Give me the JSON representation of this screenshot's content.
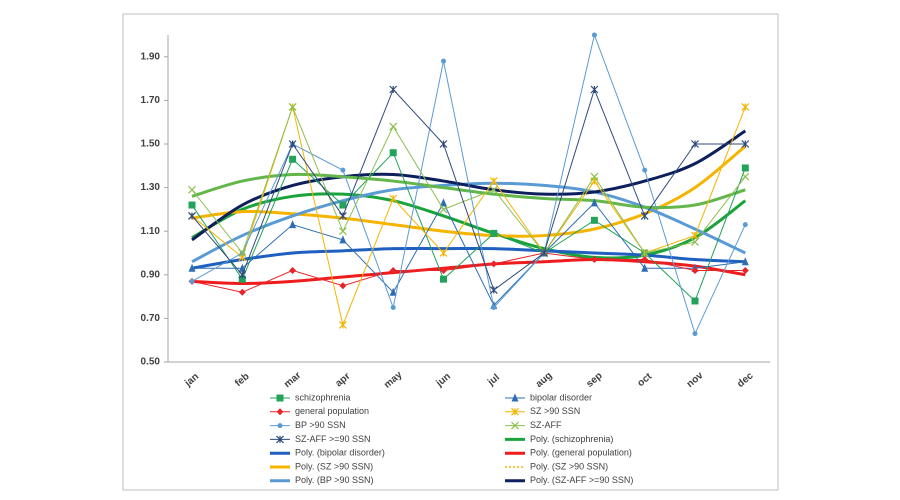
{
  "chart_data": {
    "type": "line",
    "categories": [
      "jan",
      "feb",
      "mar",
      "apr",
      "may",
      "jun",
      "jul",
      "aug",
      "sep",
      "oct",
      "nov",
      "dec"
    ],
    "ylim": [
      0.5,
      2.0
    ],
    "yticks": [
      {
        "value": 0.5,
        "label": "0.50"
      },
      {
        "value": 0.7,
        "label": "0.70"
      },
      {
        "value": 0.9,
        "label": "0.90"
      },
      {
        "value": 1.1,
        "label": "1.10"
      },
      {
        "value": 1.3,
        "label": "1.30"
      },
      {
        "value": 1.5,
        "label": "1.50"
      },
      {
        "value": 1.7,
        "label": "1.70"
      },
      {
        "value": 1.9,
        "label": "1.90"
      }
    ],
    "grid": false,
    "series": [
      {
        "name": "schizophrenia",
        "color": "#21a35a",
        "marker": "square",
        "values": [
          1.22,
          0.88,
          1.43,
          1.22,
          1.46,
          0.88,
          1.09,
          1.0,
          1.15,
          1.0,
          0.78,
          1.39
        ]
      },
      {
        "name": "bipolar disorder",
        "color": "#2e6db4",
        "marker": "triangle",
        "values": [
          0.93,
          0.93,
          1.13,
          1.06,
          0.82,
          1.23,
          0.76,
          1.0,
          1.23,
          0.93,
          0.93,
          0.96
        ]
      },
      {
        "name": "general population",
        "color": "#e8252a",
        "marker": "diamond",
        "values": [
          0.87,
          0.82,
          0.92,
          0.85,
          0.92,
          0.92,
          0.95,
          1.0,
          0.97,
          0.97,
          0.92,
          0.92
        ]
      },
      {
        "name": "SZ >90 SSN",
        "color": "#f5b400",
        "marker": "star",
        "values": [
          1.17,
          0.98,
          1.67,
          0.67,
          1.25,
          1.0,
          1.33,
          1.0,
          1.33,
          1.0,
          1.08,
          1.67
        ]
      },
      {
        "name": "BP >90 SSN",
        "color": "#5b9bd5",
        "marker": "circle",
        "values": [
          0.87,
          1.0,
          1.5,
          1.38,
          0.75,
          1.88,
          0.75,
          1.0,
          2.0,
          1.38,
          0.63,
          1.13
        ]
      },
      {
        "name": "SZ-AFF",
        "color": "#8cbf4f",
        "marker": "cross",
        "values": [
          1.29,
          1.0,
          1.67,
          1.1,
          1.58,
          1.2,
          1.29,
          1.0,
          1.35,
          1.0,
          1.05,
          1.35
        ]
      },
      {
        "name": "SZ-AFF >=90 SSN",
        "color": "#2f4a7a",
        "marker": "star",
        "values": [
          1.17,
          0.9,
          1.5,
          1.17,
          1.75,
          1.5,
          0.83,
          1.0,
          1.75,
          1.17,
          1.5,
          1.5
        ]
      },
      {
        "name": "Poly. (schizophrenia)",
        "color": "#1aa33a",
        "trend": true,
        "values": [
          1.07,
          1.2,
          1.26,
          1.27,
          1.24,
          1.17,
          1.09,
          1.02,
          0.98,
          0.99,
          1.07,
          1.24
        ]
      },
      {
        "name": "Poly. (bipolar disorder)",
        "color": "#1f5fbf",
        "trend": true,
        "values": [
          0.93,
          0.97,
          1.0,
          1.01,
          1.02,
          1.02,
          1.02,
          1.01,
          1.0,
          0.99,
          0.97,
          0.96
        ]
      },
      {
        "name": "Poly. (general population)",
        "color": "#ee1c1c",
        "trend": true,
        "values": [
          0.87,
          0.86,
          0.87,
          0.89,
          0.91,
          0.93,
          0.95,
          0.96,
          0.97,
          0.96,
          0.94,
          0.9
        ]
      },
      {
        "name": "Poly. (SZ >90 SSN)",
        "color": "#f5b400",
        "trend": true,
        "values": [
          1.16,
          1.19,
          1.18,
          1.16,
          1.13,
          1.1,
          1.08,
          1.08,
          1.11,
          1.18,
          1.3,
          1.49
        ]
      },
      {
        "name": "Poly. (SZ >90 SSN)",
        "color": "#f5b400",
        "trend": true,
        "dotted": true,
        "values": [
          1.16,
          1.19,
          1.18,
          1.16,
          1.13,
          1.1,
          1.08,
          1.08,
          1.11,
          1.18,
          1.3,
          1.49
        ]
      },
      {
        "name": "Poly. (BP >90 SSN)",
        "color": "#5a9bd5",
        "trend": true,
        "values": [
          0.96,
          1.08,
          1.17,
          1.24,
          1.29,
          1.31,
          1.32,
          1.31,
          1.28,
          1.21,
          1.11,
          1.0
        ]
      },
      {
        "name": "Poly. (SZ-AFF >=90 SSN)",
        "color": "#0d1f5c",
        "trend": true,
        "values": [
          1.06,
          1.22,
          1.31,
          1.35,
          1.36,
          1.33,
          1.29,
          1.27,
          1.28,
          1.33,
          1.41,
          1.56
        ]
      },
      {
        "color": "#62b64a",
        "trend": true,
        "values": [
          1.26,
          1.33,
          1.36,
          1.35,
          1.33,
          1.3,
          1.27,
          1.25,
          1.24,
          1.21,
          1.22,
          1.29
        ]
      }
    ]
  }
}
